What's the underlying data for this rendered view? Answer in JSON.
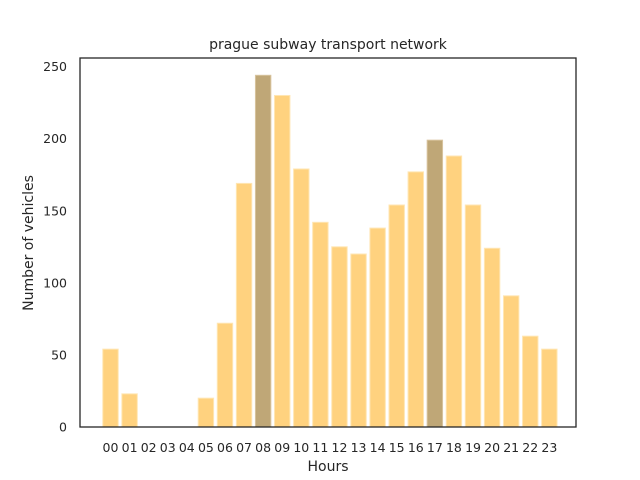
{
  "chart_data": {
    "type": "bar",
    "title": "prague subway transport network",
    "xlabel": "Hours",
    "ylabel": "Number of vehicles",
    "categories": [
      "00",
      "01",
      "02",
      "03",
      "04",
      "05",
      "06",
      "07",
      "08",
      "09",
      "10",
      "11",
      "12",
      "13",
      "14",
      "15",
      "16",
      "17",
      "18",
      "19",
      "20",
      "21",
      "22",
      "23"
    ],
    "values": [
      54,
      23,
      0,
      0,
      0,
      20,
      72,
      169,
      244,
      230,
      179,
      142,
      125,
      120,
      138,
      154,
      177,
      199,
      188,
      154,
      124,
      91,
      63,
      54
    ],
    "highlighted_categories": [
      "08",
      "17"
    ],
    "ylim": [
      0,
      256
    ],
    "yticks": [
      0,
      50,
      100,
      150,
      200,
      250
    ],
    "grid": false,
    "colors": {
      "bar": "#ffd27f",
      "bar_edge": "#ffe6b3",
      "highlight": "#bfa777",
      "highlight_edge": "#d8c49e"
    }
  }
}
